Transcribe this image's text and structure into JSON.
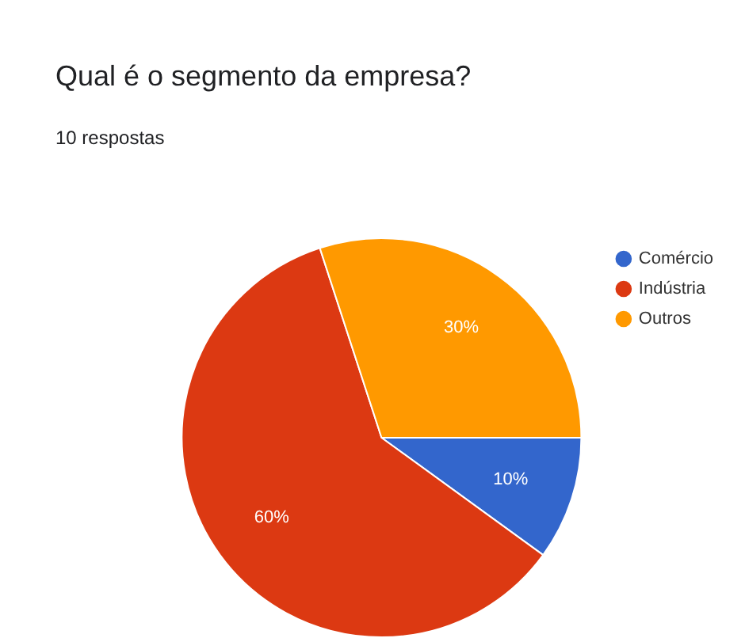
{
  "chart_data": {
    "type": "pie",
    "title": "Qual é o segmento da empresa?",
    "subtitle": "10 respostas",
    "categories": [
      "Comércio",
      "Indústria",
      "Outros"
    ],
    "values": [
      10,
      60,
      30
    ],
    "colors": [
      "#3366cc",
      "#dc3912",
      "#ff9900"
    ],
    "value_labels": [
      "10%",
      "60%",
      "30%"
    ],
    "legend": "top right"
  }
}
